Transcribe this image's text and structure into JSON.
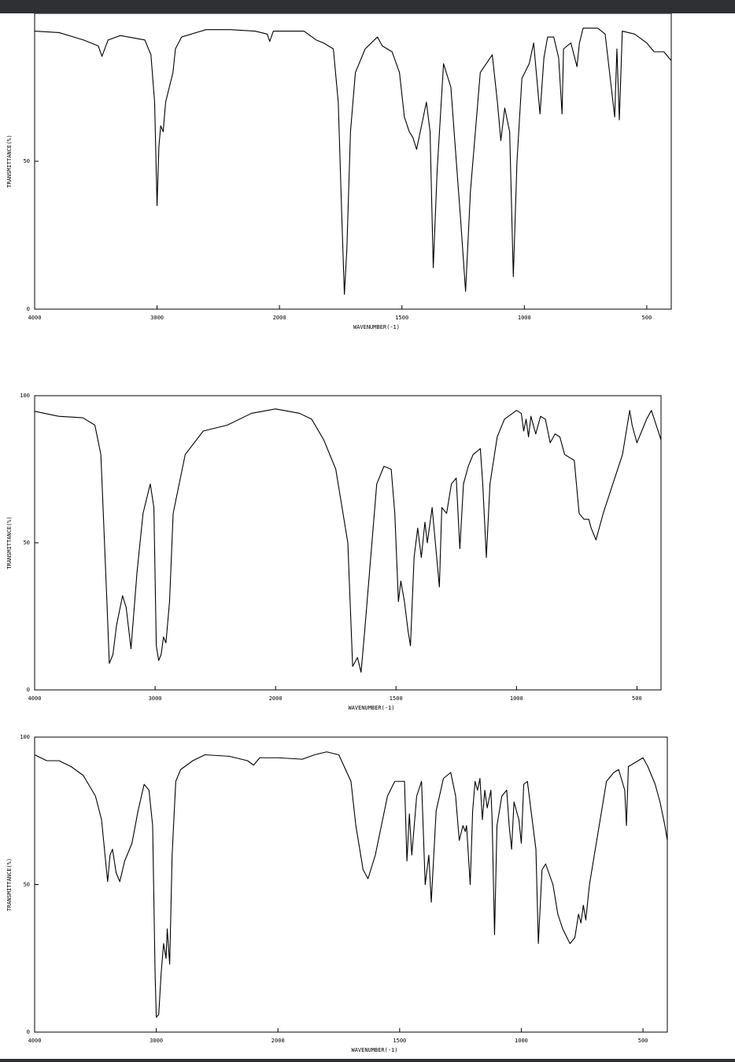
{
  "chart_data": [
    {
      "type": "line",
      "xlabel": "WAVENUMBER(-1)",
      "ylabel": "TRANSMITTANCE(%)",
      "xlim": [
        4000,
        400
      ],
      "ylim": [
        0,
        100
      ],
      "xticks": [
        4000,
        3000,
        2000,
        1500,
        1000,
        500
      ],
      "yticks": [
        0,
        50
      ],
      "x": [
        4000,
        3800,
        3600,
        3480,
        3450,
        3400,
        3300,
        3100,
        3050,
        3020,
        3000,
        2985,
        2970,
        2950,
        2930,
        2900,
        2870,
        2850,
        2800,
        2600,
        2400,
        2200,
        2100,
        2080,
        2050,
        1900,
        1850,
        1820,
        1780,
        1760,
        1745,
        1735,
        1725,
        1710,
        1690,
        1650,
        1600,
        1580,
        1540,
        1510,
        1490,
        1470,
        1455,
        1440,
        1420,
        1400,
        1385,
        1372,
        1356,
        1330,
        1300,
        1285,
        1260,
        1240,
        1220,
        1180,
        1131,
        1110,
        1096,
        1080,
        1060,
        1045,
        1030,
        1010,
        980,
        962,
        936,
        920,
        905,
        880,
        860,
        846,
        840,
        810,
        785,
        775,
        760,
        700,
        670,
        631,
        622,
        612,
        600,
        550,
        500,
        470,
        430,
        400
      ],
      "series": [
        {
          "color": "#000000",
          "values": [
            94,
            93.5,
            91,
            89,
            85.5,
            91,
            92.5,
            91,
            86,
            70,
            35,
            55,
            62,
            60,
            70,
            75,
            80,
            88,
            92,
            94.5,
            94.5,
            94,
            93,
            90.5,
            94,
            94,
            91,
            90,
            88,
            70,
            30,
            5,
            20,
            60,
            80,
            88,
            92,
            89,
            87,
            80,
            65,
            60,
            58,
            54,
            62,
            70,
            60,
            14,
            47,
            83,
            75,
            58,
            30,
            6,
            40,
            80,
            86,
            70,
            57,
            68,
            60,
            11,
            50,
            78,
            83,
            90,
            66,
            85,
            92,
            92,
            85,
            66,
            88,
            90,
            82,
            90,
            95,
            95,
            93,
            65,
            88,
            64,
            94,
            93,
            90,
            87,
            87,
            84
          ]
        }
      ]
    },
    {
      "type": "line",
      "xlabel": "WAVENUMBER(-1)",
      "ylabel": "TRANSMITTANCE(%)",
      "xlim": [
        4000,
        400
      ],
      "ylim": [
        0,
        100
      ],
      "xticks": [
        4000,
        3000,
        2000,
        1500,
        1000,
        500
      ],
      "yticks": [
        0,
        50,
        100
      ],
      "x": [
        4000,
        3800,
        3600,
        3500,
        3450,
        3400,
        3380,
        3350,
        3320,
        3270,
        3240,
        3200,
        3150,
        3100,
        3040,
        3010,
        2990,
        2970,
        2950,
        2930,
        2910,
        2880,
        2850,
        2800,
        2750,
        2600,
        2400,
        2200,
        2000,
        1900,
        1850,
        1800,
        1750,
        1700,
        1680,
        1660,
        1645,
        1630,
        1610,
        1580,
        1550,
        1520,
        1505,
        1490,
        1480,
        1465,
        1450,
        1440,
        1425,
        1410,
        1395,
        1380,
        1370,
        1350,
        1320,
        1310,
        1290,
        1270,
        1250,
        1235,
        1220,
        1200,
        1180,
        1150,
        1140,
        1125,
        1110,
        1080,
        1050,
        1000,
        980,
        970,
        960,
        950,
        940,
        920,
        900,
        880,
        860,
        840,
        820,
        800,
        760,
        740,
        720,
        700,
        690,
        670,
        640,
        600,
        560,
        530,
        520,
        500,
        480,
        460,
        440,
        420,
        400
      ],
      "series": [
        {
          "color": "#000000",
          "values": [
            94.7,
            93,
            92.5,
            90,
            80,
            30,
            9,
            12,
            22,
            32,
            28,
            14,
            40,
            60,
            70,
            62,
            15,
            10,
            12,
            18,
            16,
            30,
            60,
            70,
            80,
            88,
            90,
            94,
            95.5,
            94,
            92,
            85,
            75,
            50,
            8,
            11,
            6,
            20,
            40,
            70,
            76,
            75,
            60,
            30,
            37,
            30,
            20,
            15,
            45,
            55,
            45,
            57,
            50,
            62,
            35,
            62,
            60,
            70,
            72,
            48,
            70,
            76,
            80,
            82,
            70,
            45,
            70,
            86,
            92,
            95,
            94,
            88,
            92,
            86,
            93,
            87,
            93,
            92,
            84,
            87,
            86,
            80,
            78,
            60,
            58,
            58,
            55,
            51,
            60,
            70,
            80,
            95,
            90,
            84,
            88,
            92,
            95,
            90,
            85
          ]
        }
      ]
    },
    {
      "type": "line",
      "xlabel": "WAVENUMBER(-1)",
      "ylabel": "TRANSMITTANCE(%)",
      "xlim": [
        4000,
        400
      ],
      "ylim": [
        0,
        100
      ],
      "xticks": [
        4000,
        3000,
        2000,
        1500,
        1000,
        500
      ],
      "yticks": [
        0,
        50,
        100
      ],
      "x": [
        4000,
        3900,
        3800,
        3700,
        3600,
        3500,
        3450,
        3400,
        3380,
        3360,
        3330,
        3300,
        3260,
        3200,
        3150,
        3100,
        3060,
        3030,
        3010,
        3000,
        2980,
        2960,
        2940,
        2920,
        2910,
        2890,
        2870,
        2840,
        2800,
        2700,
        2600,
        2400,
        2250,
        2200,
        2150,
        2000,
        1900,
        1850,
        1800,
        1750,
        1700,
        1680,
        1650,
        1630,
        1600,
        1550,
        1520,
        1480,
        1470,
        1460,
        1450,
        1430,
        1410,
        1395,
        1380,
        1370,
        1350,
        1320,
        1290,
        1270,
        1255,
        1240,
        1230,
        1225,
        1210,
        1200,
        1190,
        1180,
        1170,
        1160,
        1150,
        1140,
        1125,
        1120,
        1110,
        1100,
        1080,
        1060,
        1050,
        1040,
        1030,
        1010,
        1000,
        990,
        975,
        960,
        940,
        930,
        915,
        900,
        870,
        850,
        830,
        800,
        780,
        765,
        755,
        745,
        735,
        720,
        700,
        650,
        620,
        600,
        575,
        568,
        560,
        520,
        500,
        480,
        450,
        430,
        410,
        400
      ],
      "series": [
        {
          "color": "#000000",
          "values": [
            94,
            92,
            92,
            90,
            87,
            80,
            72,
            51,
            60,
            62,
            54,
            51,
            58,
            64,
            75,
            84,
            82,
            70,
            20,
            5,
            6,
            20,
            30,
            25,
            35,
            23,
            60,
            85,
            89,
            92,
            94,
            93.5,
            92,
            90.5,
            93,
            93,
            92.5,
            94,
            95,
            94,
            85,
            70,
            55,
            52,
            60,
            80,
            85,
            85,
            58,
            74,
            60,
            80,
            85,
            50,
            60,
            44,
            75,
            86,
            88,
            80,
            65,
            70,
            68,
            70,
            50,
            75,
            85,
            82,
            86,
            72,
            82,
            76,
            82,
            72,
            33,
            70,
            80,
            82,
            70,
            62,
            78,
            72,
            64,
            84,
            85,
            75,
            62,
            30,
            55,
            57,
            50,
            40,
            35,
            30,
            32,
            40,
            37,
            43,
            38,
            50,
            60,
            85,
            88,
            89,
            82,
            70,
            90,
            92,
            93,
            90,
            84,
            78,
            70,
            65
          ]
        }
      ]
    }
  ]
}
